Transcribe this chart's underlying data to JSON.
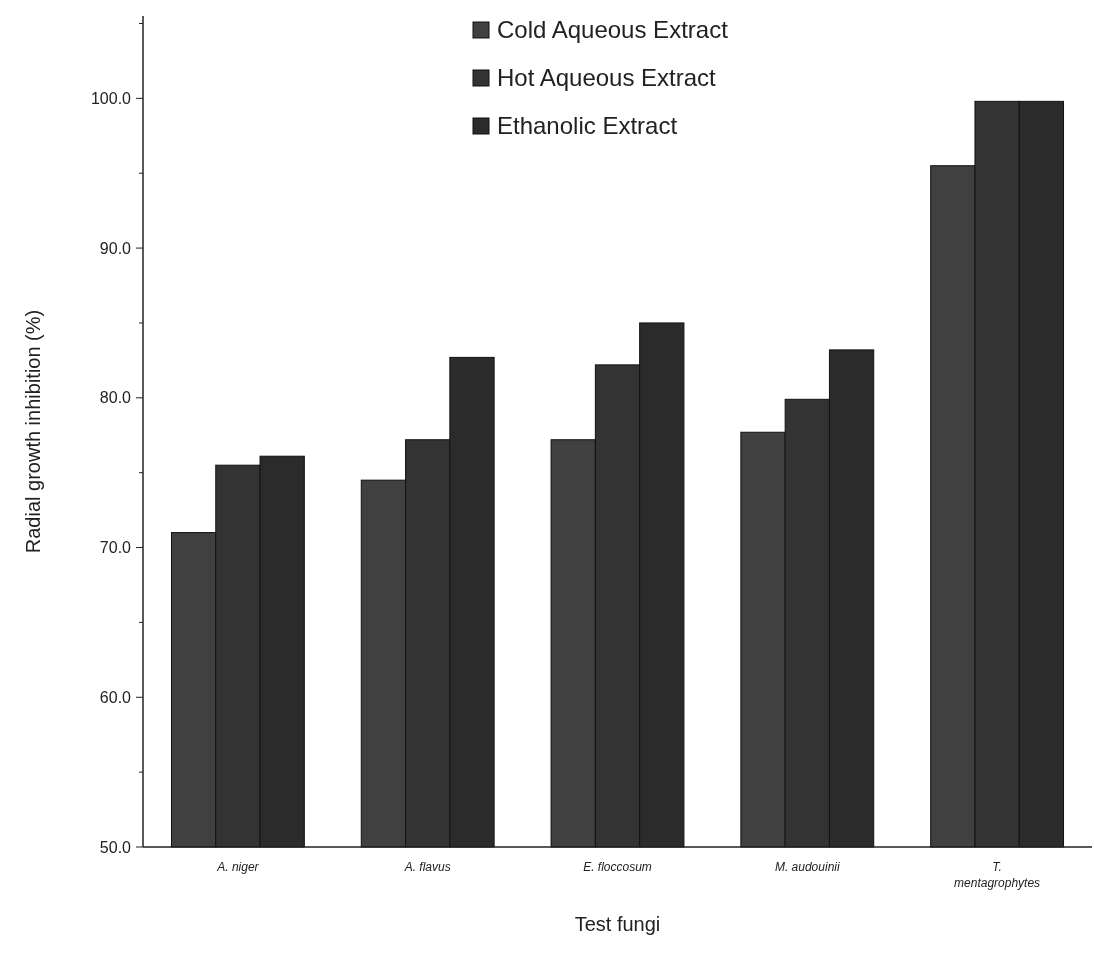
{
  "chart_data": {
    "type": "bar",
    "xlabel": "Test fungi",
    "ylabel": "Radial growth inhibition (%)",
    "categories": [
      "A. niger",
      "A. flavus",
      "E. floccosum",
      "M. audouinii",
      "T. mentagrophytes"
    ],
    "series": [
      {
        "name": "Cold Aqueous Extract",
        "color": "#404040",
        "values": [
          71.0,
          74.5,
          77.2,
          77.7,
          95.5
        ]
      },
      {
        "name": "Hot Aqueous Extract",
        "color": "#333333",
        "values": [
          75.5,
          77.2,
          82.2,
          79.9,
          99.8
        ]
      },
      {
        "name": "Ethanolic Extract",
        "color": "#2b2b2b",
        "values": [
          76.1,
          82.7,
          85.0,
          83.2,
          99.8
        ]
      }
    ],
    "ylim": [
      50,
      105.5
    ],
    "yticks": [
      {
        "value": 50,
        "label": "50.0"
      },
      {
        "value": 55,
        "label": null
      },
      {
        "value": 60,
        "label": "60.0"
      },
      {
        "value": 65,
        "label": null
      },
      {
        "value": 70,
        "label": "70.0"
      },
      {
        "value": 75,
        "label": null
      },
      {
        "value": 80,
        "label": "80.0"
      },
      {
        "value": 85,
        "label": null
      },
      {
        "value": 90,
        "label": "90.0"
      },
      {
        "value": 95,
        "label": null
      },
      {
        "value": 100,
        "label": "100.0"
      },
      {
        "value": 105,
        "label": null
      }
    ],
    "legend": "top",
    "grid": false
  }
}
